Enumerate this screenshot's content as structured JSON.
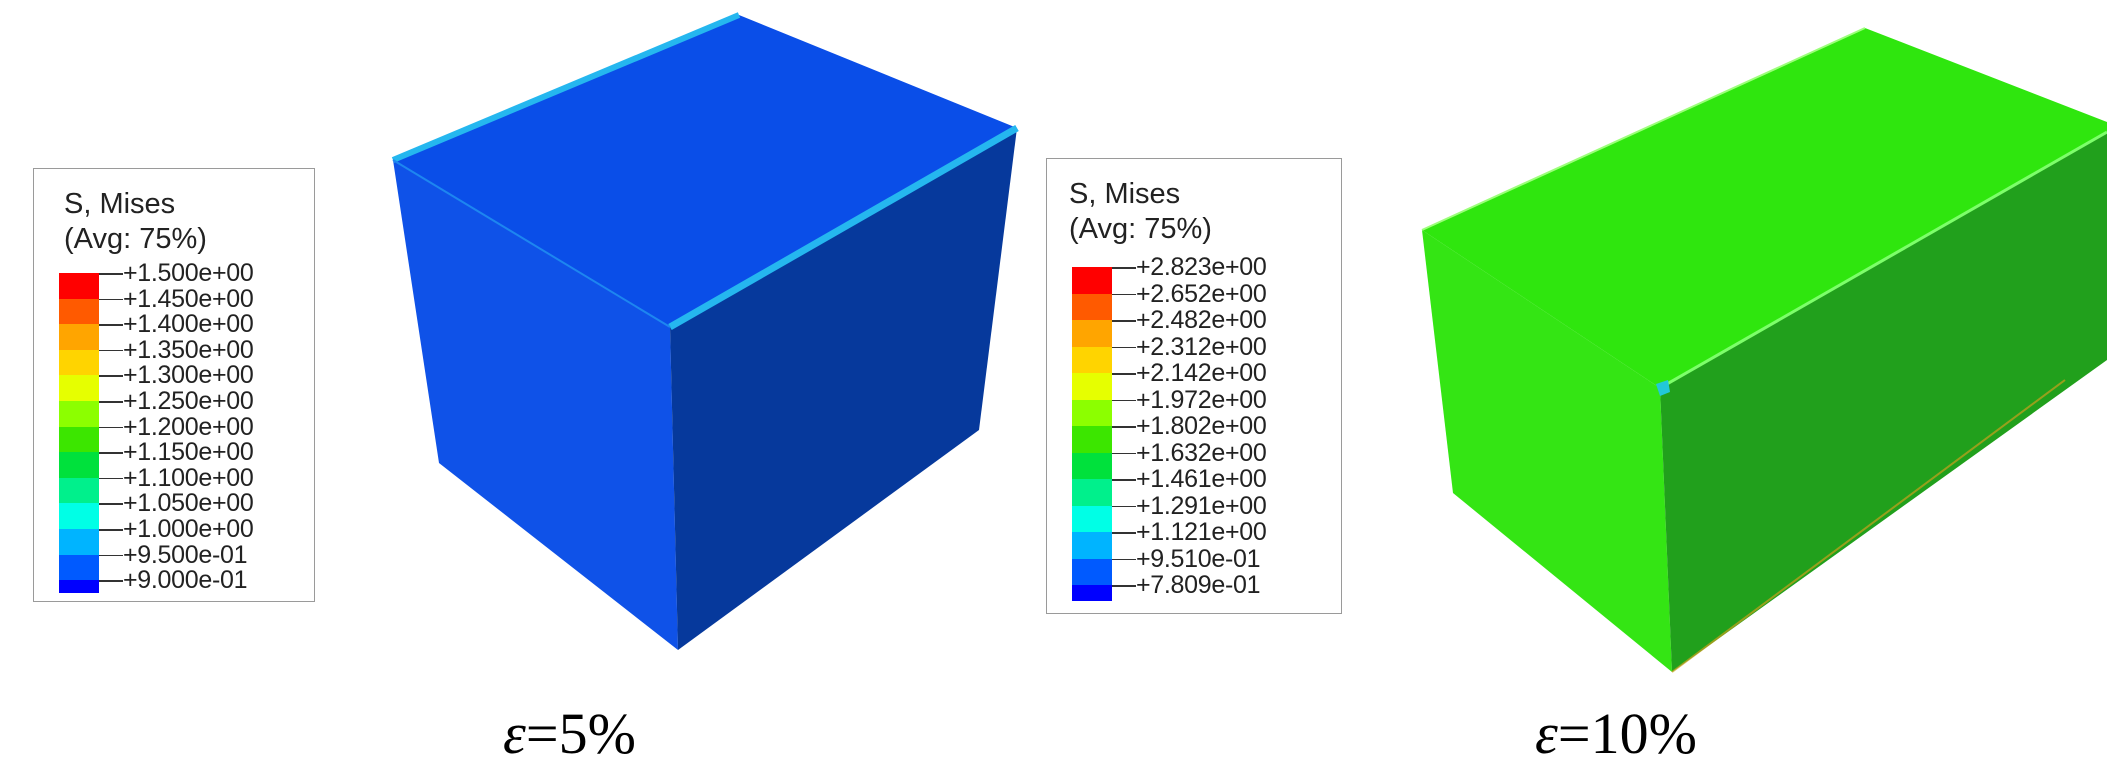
{
  "panels": [
    {
      "legend": {
        "title_line1": "S, Mises",
        "title_line2": "(Avg: 75%)",
        "values": [
          "+1.500e+00",
          "+1.450e+00",
          "+1.400e+00",
          "+1.350e+00",
          "+1.300e+00",
          "+1.250e+00",
          "+1.200e+00",
          "+1.150e+00",
          "+1.100e+00",
          "+1.050e+00",
          "+1.000e+00",
          "+9.500e-01",
          "+9.000e-01"
        ]
      },
      "caption": {
        "symbol": "ε",
        "text": "=5%"
      }
    },
    {
      "legend": {
        "title_line1": "S, Mises",
        "title_line2": "(Avg: 75%)",
        "values": [
          "+2.823e+00",
          "+2.652e+00",
          "+2.482e+00",
          "+2.312e+00",
          "+2.142e+00",
          "+1.972e+00",
          "+1.802e+00",
          "+1.632e+00",
          "+1.461e+00",
          "+1.291e+00",
          "+1.121e+00",
          "+9.510e-01",
          "+7.809e-01"
        ]
      },
      "caption": {
        "symbol": "ε",
        "text": "=10%"
      }
    }
  ],
  "contour_colors": [
    "#ff0000",
    "#ff5a00",
    "#ffa500",
    "#ffd400",
    "#e6ff00",
    "#8cff00",
    "#3ce600",
    "#00e13c",
    "#00f08c",
    "#00ffe6",
    "#00b4ff",
    "#005aff",
    "#0000ff"
  ],
  "model_colors": {
    "cube_top": "#0a4ee8",
    "cube_front": "#0f52e8",
    "cube_right": "#06399c",
    "cube_edge": "#25b7ef",
    "block_top": "#2fe60e",
    "block_front": "#34e514",
    "block_right": "#21a01c",
    "block_edge": "#7dff6a"
  }
}
